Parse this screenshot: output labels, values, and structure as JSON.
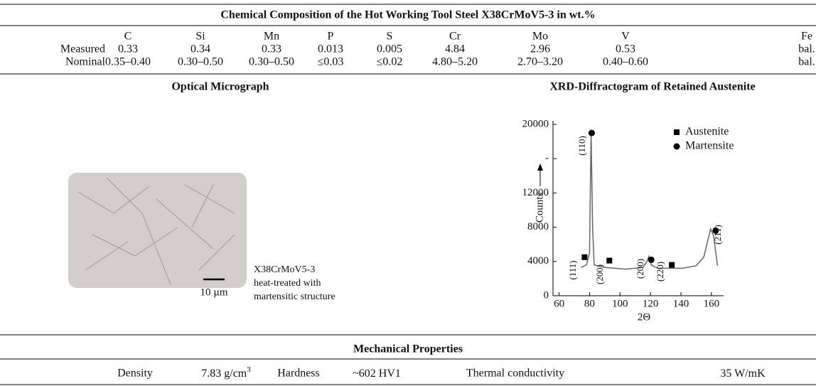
{
  "table": {
    "title": "Chemical Composition of the Hot Working Tool Steel X38CrMoV5-3 in wt.%",
    "columns": [
      "C",
      "Si",
      "Mn",
      "P",
      "S",
      "Cr",
      "Mo",
      "V",
      "Fe"
    ],
    "rows": [
      {
        "label": "Measured",
        "cells": [
          "0.33",
          "0.34",
          "0.33",
          "0.013",
          "0.005",
          "4.84",
          "2.96",
          "0.53",
          "bal."
        ]
      },
      {
        "label": "Nominal",
        "cells": [
          "0.35–0.40",
          "0.30–0.50",
          "0.30–0.50",
          "≤0.03",
          "≤0.02",
          "4.80–5.20",
          "2.70–3.20",
          "0.40–0.60",
          "bal."
        ]
      }
    ]
  },
  "micrograph": {
    "heading": "Optical Micrograph",
    "scale_bar": "10 µm",
    "caption": [
      "X38CrMoV5-3",
      "heat-treated with",
      "martensitic structure"
    ]
  },
  "chart_data": {
    "type": "line",
    "title": "XRD-Diffractogram of Retained Austenite",
    "x_label": "2Θ",
    "y_label": "Counts",
    "xlim": [
      56,
      168
    ],
    "ylim": [
      0,
      20000
    ],
    "xticks": [
      60,
      80,
      100,
      120,
      140,
      160
    ],
    "yticks": [
      0,
      4000,
      8000,
      12000,
      {
        "value": 16000,
        "label": "-"
      },
      20000
    ],
    "x": [
      74.4,
      78,
      80,
      81,
      82,
      83,
      90,
      104,
      115,
      117.7,
      119,
      120.5,
      124.7,
      141,
      150,
      155,
      157.7,
      159.5,
      161.4,
      164
    ],
    "values": [
      3300,
      3600,
      5000,
      19000,
      8000,
      3600,
      3300,
      3100,
      3300,
      4000,
      4600,
      3600,
      3200,
      3200,
      3500,
      4500,
      6500,
      7800,
      7000,
      3500
    ],
    "color": "#666666",
    "markers": [
      {
        "name": "Austenite",
        "shape": "square",
        "color": "#000000",
        "x": [
          76.7,
          93,
          134
        ],
        "values": [
          4500,
          4100,
          3600
        ]
      },
      {
        "name": "Martensite",
        "shape": "circle",
        "color": "#000000",
        "x": [
          81.4,
          120.5,
          162.8
        ],
        "values": [
          19000,
          4200,
          7600
        ]
      }
    ],
    "annotations": [
      "(111)",
      "(200)",
      "(110)",
      "(200)",
      "(220)",
      "(211)"
    ],
    "legend": "upper right"
  },
  "mechanical": {
    "heading": "Mechanical Properties",
    "items": [
      {
        "label": "Density",
        "value": "7.83 g/cm",
        "sup": "3"
      },
      {
        "label": "Hardness",
        "value": "~602 HV1"
      },
      {
        "label": "Thermal conductivity",
        "value": "35 W/mK"
      }
    ]
  }
}
